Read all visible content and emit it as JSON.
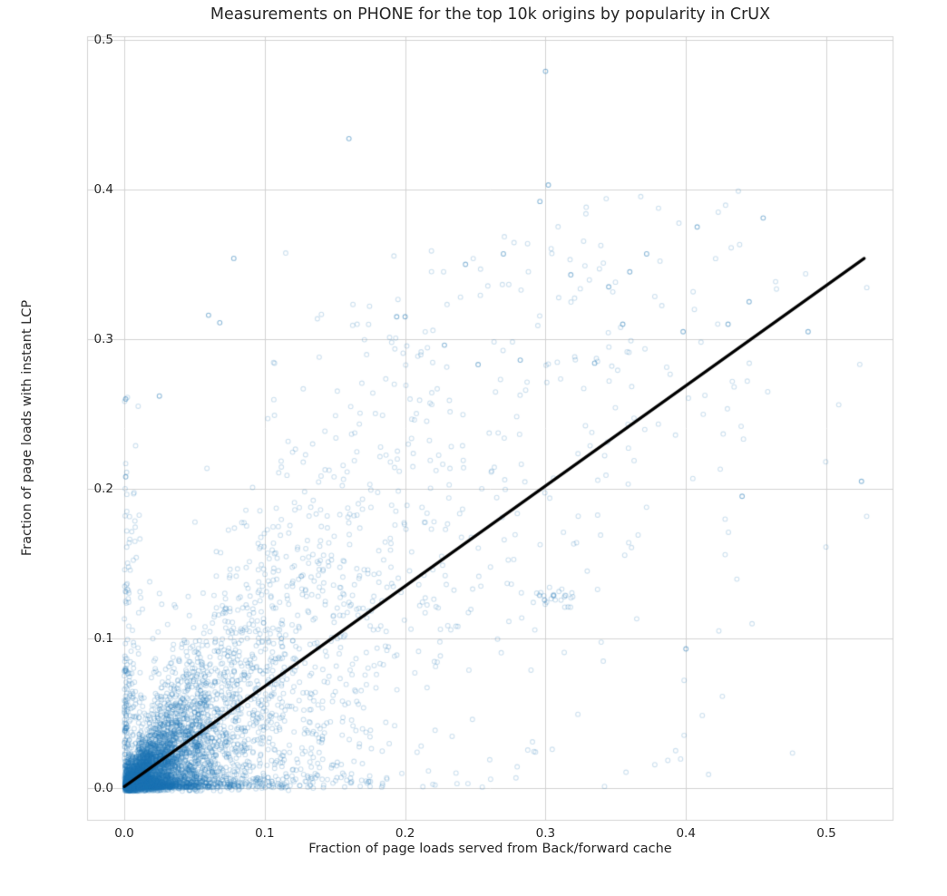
{
  "chart_data": {
    "type": "scatter",
    "title": "Measurements on PHONE for the top 10k origins by popularity in CrUX",
    "xlabel": "Fraction of page loads served from Back/forward cache",
    "ylabel": "Fraction of page loads with instant LCP",
    "x_ticks": [
      0.0,
      0.1,
      0.2,
      0.3,
      0.4,
      0.5
    ],
    "y_ticks": [
      0.0,
      0.1,
      0.2,
      0.3,
      0.4,
      0.5
    ],
    "xlim": [
      -0.0265,
      0.5478
    ],
    "ylim": [
      -0.0218,
      0.5024
    ],
    "grid": true,
    "grid_color": "#d3d3d3",
    "background_color": "#ffffff",
    "marker": {
      "shape": "open-circle",
      "color": "#1f77b4",
      "alpha": 0.22,
      "radius": 2.4,
      "line_width": 1.1
    },
    "trend_line": {
      "x": [
        0.0,
        0.527
      ],
      "y": [
        0.001,
        0.354
      ],
      "color": "#000000",
      "width": 3.2
    },
    "point_cloud": {
      "seed": 42,
      "clusters": [
        {
          "n": 3500,
          "x": {
            "type": "exp",
            "mean": 0.022,
            "off": 0.0005
          },
          "y": {
            "type": "linear",
            "slope": 0.45,
            "ybase": 0.006,
            "yprop": 0.35
          },
          "ymax": 0.3
        },
        {
          "n": 1800,
          "x": {
            "type": "exp",
            "mean": 0.06,
            "off": 0.01
          },
          "y": {
            "type": "linear",
            "slope": 0.7,
            "ybase": 0.015,
            "yprop": 0.45
          },
          "ymax": 0.36
        },
        {
          "n": 600,
          "x": {
            "type": "exp",
            "mean": 0.12,
            "off": 0.02
          },
          "y": {
            "type": "linear",
            "slope": 0.75,
            "ybase": 0.03,
            "yprop": 0.5
          },
          "ymax": 0.4
        },
        {
          "n": 250,
          "x": {
            "type": "exp",
            "mean": 0.004,
            "off": 0.0
          },
          "y": {
            "type": "exp",
            "mean": 0.06,
            "off": 0.002
          },
          "ymax": 0.27
        },
        {
          "n": 28,
          "x": {
            "type": "gauss",
            "mu": 0.308,
            "sd": 0.007
          },
          "y": {
            "type": "gauss",
            "mu": 0.128,
            "sd": 0.003
          },
          "ymax": 0.15
        },
        {
          "n": 120,
          "x": {
            "type": "uniform",
            "a": 0.15,
            "b": 0.45
          },
          "y": {
            "type": "linear",
            "slope": 0.72,
            "ybase": 0.055,
            "yprop": 0.1
          },
          "ymax": 0.4
        }
      ]
    },
    "outlier_points": [
      [
        0.16,
        0.434
      ],
      [
        0.3,
        0.479
      ],
      [
        0.302,
        0.403
      ],
      [
        0.296,
        0.392
      ],
      [
        0.455,
        0.381
      ],
      [
        0.408,
        0.375
      ],
      [
        0.372,
        0.357
      ],
      [
        0.27,
        0.357
      ],
      [
        0.243,
        0.35
      ],
      [
        0.078,
        0.354
      ],
      [
        0.487,
        0.305
      ],
      [
        0.525,
        0.205
      ],
      [
        0.445,
        0.325
      ],
      [
        0.43,
        0.31
      ],
      [
        0.398,
        0.305
      ],
      [
        0.06,
        0.316
      ],
      [
        0.068,
        0.311
      ],
      [
        0.025,
        0.262
      ],
      [
        0.001,
        0.26
      ],
      [
        0.001,
        0.208
      ],
      [
        0.355,
        0.31
      ],
      [
        0.345,
        0.335
      ],
      [
        0.36,
        0.345
      ],
      [
        0.44,
        0.195
      ],
      [
        0.4,
        0.093
      ],
      [
        0.335,
        0.284
      ],
      [
        0.318,
        0.343
      ],
      [
        0.282,
        0.286
      ],
      [
        0.252,
        0.283
      ],
      [
        0.228,
        0.296
      ],
      [
        0.2,
        0.315
      ],
      [
        0.194,
        0.315
      ]
    ]
  }
}
